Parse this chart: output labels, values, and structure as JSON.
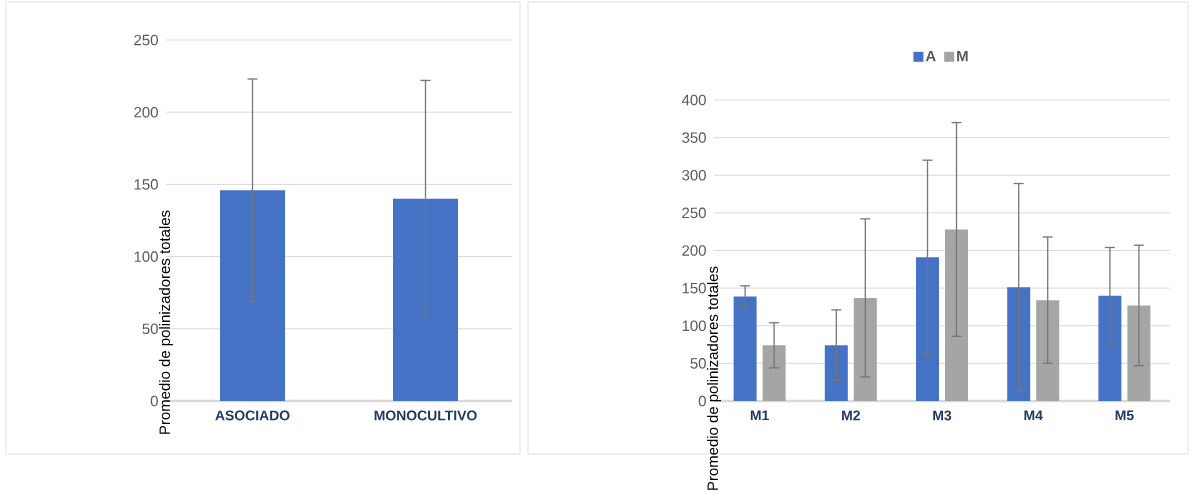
{
  "chart_data": [
    {
      "type": "bar",
      "ylabel": "Promedio de polinizadores totales",
      "categories": [
        "ASOCIADO",
        "MONOCULTIVO"
      ],
      "values": [
        146,
        140
      ],
      "errors": [
        77,
        82
      ],
      "color": "#4472c4",
      "ylim": [
        0,
        250
      ],
      "yticks": [
        0,
        50,
        100,
        150,
        200,
        250
      ],
      "grid": "y",
      "legend": false
    },
    {
      "type": "bar",
      "ylabel": "Promedio de polinizadores totales",
      "categories": [
        "M1",
        "M2",
        "M3",
        "M4",
        "M5"
      ],
      "series": [
        {
          "name": "A",
          "color": "#4472c4",
          "values": [
            139,
            74,
            191,
            151,
            140
          ],
          "errors": [
            14,
            47,
            129,
            138,
            64
          ]
        },
        {
          "name": "M",
          "color": "#a5a5a5",
          "values": [
            74,
            137,
            228,
            134,
            127
          ],
          "errors": [
            30,
            105,
            142,
            84,
            80
          ]
        }
      ],
      "ylim": [
        0,
        400
      ],
      "yticks": [
        0,
        50,
        100,
        150,
        200,
        250,
        300,
        350,
        400
      ],
      "grid": "y",
      "legend": "top"
    }
  ]
}
